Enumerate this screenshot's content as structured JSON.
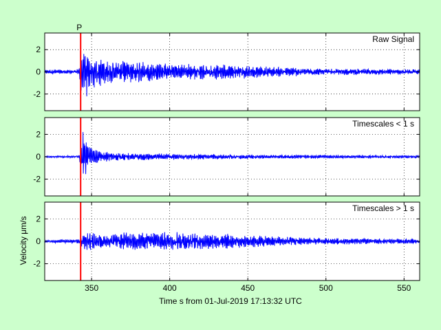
{
  "figure": {
    "background": "#ccffcc",
    "axes_background": "#ffffff",
    "trace_color": "#0000ff",
    "pick_color": "#ff0000",
    "xlabel": "Time s from 01-Jul-2019 17:13:32 UTC",
    "ylabel": "Velocity μm/s"
  },
  "chart_data": [
    {
      "type": "line",
      "title": "Raw Signal",
      "xlim": [
        320,
        560
      ],
      "ylim": [
        -3.5,
        3.5
      ],
      "yticks": [
        -2,
        0,
        2
      ],
      "xticks": [
        350,
        400,
        450,
        500,
        550
      ],
      "grid": true,
      "series": [
        {
          "envelope": [
            [
              320,
              0.2
            ],
            [
              342,
              0.25
            ],
            [
              344,
              2.7
            ],
            [
              350,
              1.7
            ],
            [
              360,
              1.0
            ],
            [
              380,
              1.0
            ],
            [
              400,
              0.8
            ],
            [
              420,
              0.75
            ],
            [
              440,
              0.7
            ],
            [
              460,
              0.5
            ],
            [
              500,
              0.3
            ],
            [
              560,
              0.25
            ]
          ]
        }
      ],
      "pick": {
        "label": "P",
        "x": 343
      }
    },
    {
      "type": "line",
      "title": "Timescales < 1 s",
      "xlim": [
        320,
        560
      ],
      "ylim": [
        -3.5,
        3.5
      ],
      "yticks": [
        -2,
        0,
        2
      ],
      "xticks": [
        350,
        400,
        450,
        500,
        550
      ],
      "grid": true,
      "series": [
        {
          "envelope": [
            [
              320,
              0.08
            ],
            [
              342,
              0.1
            ],
            [
              344,
              2.7
            ],
            [
              348,
              1.0
            ],
            [
              355,
              0.5
            ],
            [
              370,
              0.35
            ],
            [
              400,
              0.28
            ],
            [
              450,
              0.2
            ],
            [
              500,
              0.15
            ],
            [
              560,
              0.12
            ]
          ]
        }
      ],
      "pick": {
        "x": 343
      }
    },
    {
      "type": "line",
      "title": "Timescales > 1 s",
      "xlim": [
        320,
        560
      ],
      "ylim": [
        -3.5,
        3.5
      ],
      "yticks": [
        -2,
        0,
        2
      ],
      "xticks": [
        350,
        400,
        450,
        500,
        550
      ],
      "xticklabels": [
        "350",
        "400",
        "450",
        "500",
        "550"
      ],
      "grid": true,
      "series": [
        {
          "envelope": [
            [
              320,
              0.15
            ],
            [
              342,
              0.2
            ],
            [
              345,
              0.9
            ],
            [
              360,
              0.5
            ],
            [
              370,
              0.8
            ],
            [
              400,
              0.85
            ],
            [
              420,
              0.75
            ],
            [
              440,
              0.7
            ],
            [
              460,
              0.5
            ],
            [
              500,
              0.3
            ],
            [
              560,
              0.22
            ]
          ]
        }
      ],
      "pick": {
        "x": 343
      }
    }
  ]
}
